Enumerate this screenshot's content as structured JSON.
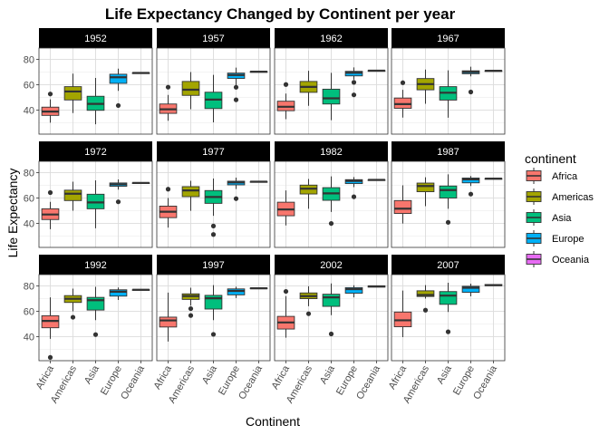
{
  "chart_data": {
    "type": "box",
    "title": "Life Expectancy Changed by Continent per year",
    "xlabel": "Continent",
    "ylabel": "Life Expectancy",
    "categories": [
      "Africa",
      "Americas",
      "Asia",
      "Europe",
      "Oceania"
    ],
    "yticks": [
      40,
      60,
      80
    ],
    "ylim": [
      21,
      89
    ],
    "grid": true,
    "facet_layout": "3 rows x 4 columns",
    "legend": {
      "title": "continent",
      "position": "right",
      "entries": [
        {
          "name": "Africa",
          "color": "#F8766D"
        },
        {
          "name": "Americas",
          "color": "#A3A500"
        },
        {
          "name": "Asia",
          "color": "#00BF7D"
        },
        {
          "name": "Europe",
          "color": "#00B0F6"
        },
        {
          "name": "Oceania",
          "color": "#E76BF3"
        }
      ]
    },
    "panels": [
      {
        "year": "1952",
        "boxes": [
          {
            "q1": 35.8,
            "med": 38.8,
            "q3": 42.3,
            "lo": 30.0,
            "hi": 48.5,
            "out": [
              52.7
            ]
          },
          {
            "q1": 48.0,
            "med": 54.7,
            "q3": 58.5,
            "lo": 37.6,
            "hi": 68.8,
            "out": []
          },
          {
            "q1": 39.8,
            "med": 44.9,
            "q3": 50.9,
            "lo": 28.8,
            "hi": 65.4,
            "out": []
          },
          {
            "q1": 61.1,
            "med": 65.9,
            "q3": 68.3,
            "lo": 55.2,
            "hi": 72.7,
            "out": [
              43.6
            ]
          },
          {
            "q1": 69.3,
            "med": 69.3,
            "q3": 69.4,
            "lo": 69.1,
            "hi": 69.4,
            "out": []
          }
        ]
      },
      {
        "year": "1957",
        "boxes": [
          {
            "q1": 37.4,
            "med": 40.6,
            "q3": 44.8,
            "lo": 31.6,
            "hi": 52.0,
            "out": [
              58.1
            ]
          },
          {
            "q1": 51.6,
            "med": 56.1,
            "q3": 62.6,
            "lo": 40.7,
            "hi": 70.0,
            "out": []
          },
          {
            "q1": 41.2,
            "med": 48.3,
            "q3": 54.1,
            "lo": 30.3,
            "hi": 67.8,
            "out": []
          },
          {
            "q1": 65.0,
            "med": 67.7,
            "q3": 69.2,
            "lo": 59.3,
            "hi": 73.5,
            "out": [
              58.0,
              48.1
            ]
          },
          {
            "q1": 70.3,
            "med": 70.3,
            "q3": 70.4,
            "lo": 70.2,
            "hi": 70.4,
            "out": []
          }
        ]
      },
      {
        "year": "1962",
        "boxes": [
          {
            "q1": 39.5,
            "med": 42.6,
            "q3": 47.0,
            "lo": 32.8,
            "hi": 53.0,
            "out": [
              60.2
            ]
          },
          {
            "q1": 54.0,
            "med": 58.3,
            "q3": 62.6,
            "lo": 43.4,
            "hi": 71.0,
            "out": []
          },
          {
            "q1": 44.8,
            "med": 49.3,
            "q3": 56.5,
            "lo": 32.0,
            "hi": 69.4,
            "out": []
          },
          {
            "q1": 67.0,
            "med": 69.5,
            "q3": 70.6,
            "lo": 64.0,
            "hi": 73.7,
            "out": [
              61.9,
              52.0
            ]
          },
          {
            "q1": 70.9,
            "med": 71.1,
            "q3": 71.2,
            "lo": 70.9,
            "hi": 71.3,
            "out": []
          }
        ]
      },
      {
        "year": "1967",
        "boxes": [
          {
            "q1": 41.4,
            "med": 44.7,
            "q3": 49.5,
            "lo": 34.1,
            "hi": 56.0,
            "out": [
              61.6
            ]
          },
          {
            "q1": 56.0,
            "med": 60.5,
            "q3": 64.9,
            "lo": 45.0,
            "hi": 72.0,
            "out": []
          },
          {
            "q1": 47.9,
            "med": 53.7,
            "q3": 58.5,
            "lo": 34.0,
            "hi": 71.4,
            "out": []
          },
          {
            "q1": 68.7,
            "med": 70.0,
            "q3": 71.0,
            "lo": 66.6,
            "hi": 74.2,
            "out": [
              54.3
            ]
          },
          {
            "q1": 71.0,
            "med": 71.0,
            "q3": 71.1,
            "lo": 70.9,
            "hi": 71.1,
            "out": []
          }
        ]
      },
      {
        "year": "1972",
        "boxes": [
          {
            "q1": 43.0,
            "med": 47.0,
            "q3": 51.5,
            "lo": 35.4,
            "hi": 57.0,
            "out": [
              64.3
            ]
          },
          {
            "q1": 58.0,
            "med": 63.4,
            "q3": 66.2,
            "lo": 50.0,
            "hi": 72.9,
            "out": []
          },
          {
            "q1": 51.5,
            "med": 56.5,
            "q3": 63.0,
            "lo": 36.1,
            "hi": 74.0,
            "out": []
          },
          {
            "q1": 69.3,
            "med": 70.8,
            "q3": 71.9,
            "lo": 66.6,
            "hi": 74.7,
            "out": [
              57.0
            ]
          },
          {
            "q1": 71.7,
            "med": 71.9,
            "q3": 72.0,
            "lo": 71.6,
            "hi": 72.0,
            "out": []
          }
        ]
      },
      {
        "year": "1977",
        "boxes": [
          {
            "q1": 44.5,
            "med": 49.2,
            "q3": 53.6,
            "lo": 36.7,
            "hi": 60.0,
            "out": [
              67.0
            ]
          },
          {
            "q1": 61.1,
            "med": 66.0,
            "q3": 69.0,
            "lo": 49.9,
            "hi": 73.6,
            "out": []
          },
          {
            "q1": 55.8,
            "med": 60.8,
            "q3": 65.9,
            "lo": 46.0,
            "hi": 75.4,
            "out": [
              37.9,
              31.2
            ]
          },
          {
            "q1": 70.4,
            "med": 72.3,
            "q3": 73.3,
            "lo": 67.1,
            "hi": 76.1,
            "out": [
              59.5
            ]
          },
          {
            "q1": 72.8,
            "med": 72.9,
            "q3": 73.0,
            "lo": 72.6,
            "hi": 73.1,
            "out": []
          }
        ]
      },
      {
        "year": "1982",
        "boxes": [
          {
            "q1": 46.0,
            "med": 51.0,
            "q3": 56.7,
            "lo": 38.4,
            "hi": 66.0,
            "out": []
          },
          {
            "q1": 63.2,
            "med": 67.4,
            "q3": 70.2,
            "lo": 51.5,
            "hi": 75.0,
            "out": []
          },
          {
            "q1": 58.2,
            "med": 63.7,
            "q3": 68.2,
            "lo": 49.0,
            "hi": 77.1,
            "out": [
              39.9
            ]
          },
          {
            "q1": 71.4,
            "med": 73.5,
            "q3": 74.5,
            "lo": 68.6,
            "hi": 76.6,
            "out": [
              61.0
            ]
          },
          {
            "q1": 74.3,
            "med": 74.3,
            "q3": 74.4,
            "lo": 74.2,
            "hi": 74.4,
            "out": []
          }
        ]
      },
      {
        "year": "1987",
        "boxes": [
          {
            "q1": 47.8,
            "med": 51.6,
            "q3": 58.0,
            "lo": 39.9,
            "hi": 70.0,
            "out": []
          },
          {
            "q1": 65.0,
            "med": 69.5,
            "q3": 71.8,
            "lo": 53.6,
            "hi": 76.4,
            "out": []
          },
          {
            "q1": 60.0,
            "med": 66.3,
            "q3": 69.5,
            "lo": 51.5,
            "hi": 78.7,
            "out": [
              40.8
            ]
          },
          {
            "q1": 72.0,
            "med": 74.8,
            "q3": 75.8,
            "lo": 69.5,
            "hi": 77.4,
            "out": [
              63.1
            ]
          },
          {
            "q1": 75.2,
            "med": 75.3,
            "q3": 75.4,
            "lo": 75.1,
            "hi": 75.5,
            "out": []
          }
        ]
      },
      {
        "year": "1992",
        "boxes": [
          {
            "q1": 47.0,
            "med": 52.4,
            "q3": 56.5,
            "lo": 38.3,
            "hi": 71.0,
            "out": [
              23.6
            ]
          },
          {
            "q1": 67.0,
            "med": 69.9,
            "q3": 72.4,
            "lo": 60.0,
            "hi": 77.9,
            "out": [
              55.3
            ]
          },
          {
            "q1": 61.0,
            "med": 68.8,
            "q3": 71.0,
            "lo": 53.0,
            "hi": 79.3,
            "out": [
              41.6
            ]
          },
          {
            "q1": 72.0,
            "med": 75.5,
            "q3": 77.0,
            "lo": 69.0,
            "hi": 78.8,
            "out": []
          },
          {
            "q1": 76.9,
            "med": 77.0,
            "q3": 77.1,
            "lo": 76.8,
            "hi": 77.2,
            "out": []
          }
        ]
      },
      {
        "year": "1997",
        "boxes": [
          {
            "q1": 47.6,
            "med": 52.8,
            "q3": 55.4,
            "lo": 36.1,
            "hi": 74.8,
            "out": []
          },
          {
            "q1": 69.4,
            "med": 72.1,
            "q3": 73.8,
            "lo": 64.5,
            "hi": 78.6,
            "out": [
              62.1,
              56.7
            ]
          },
          {
            "q1": 61.8,
            "med": 70.3,
            "q3": 72.6,
            "lo": 53.0,
            "hi": 80.7,
            "out": [
              41.8
            ]
          },
          {
            "q1": 73.0,
            "med": 76.1,
            "q3": 77.7,
            "lo": 70.5,
            "hi": 79.4,
            "out": []
          },
          {
            "q1": 78.0,
            "med": 78.2,
            "q3": 78.4,
            "lo": 77.9,
            "hi": 78.6,
            "out": []
          }
        ]
      },
      {
        "year": "2002",
        "boxes": [
          {
            "q1": 46.0,
            "med": 51.2,
            "q3": 56.0,
            "lo": 39.2,
            "hi": 72.0,
            "out": [
              75.7
            ]
          },
          {
            "q1": 70.0,
            "med": 72.0,
            "q3": 74.5,
            "lo": 64.0,
            "hi": 79.8,
            "out": [
              58.1
            ]
          },
          {
            "q1": 63.9,
            "med": 71.0,
            "q3": 73.5,
            "lo": 57.0,
            "hi": 82.0,
            "out": [
              42.1
            ]
          },
          {
            "q1": 74.3,
            "med": 77.5,
            "q3": 78.7,
            "lo": 71.0,
            "hi": 80.6,
            "out": []
          },
          {
            "q1": 79.1,
            "med": 79.7,
            "q3": 80.1,
            "lo": 79.1,
            "hi": 80.4,
            "out": []
          }
        ]
      },
      {
        "year": "2007",
        "boxes": [
          {
            "q1": 47.8,
            "med": 52.9,
            "q3": 59.4,
            "lo": 39.6,
            "hi": 76.4,
            "out": []
          },
          {
            "q1": 71.7,
            "med": 72.9,
            "q3": 76.2,
            "lo": 70.0,
            "hi": 80.7,
            "out": [
              60.9
            ]
          },
          {
            "q1": 65.5,
            "med": 72.4,
            "q3": 75.6,
            "lo": 59.5,
            "hi": 82.6,
            "out": [
              43.8
            ]
          },
          {
            "q1": 75.0,
            "med": 78.6,
            "q3": 79.8,
            "lo": 71.8,
            "hi": 81.8,
            "out": []
          },
          {
            "q1": 80.2,
            "med": 80.7,
            "q3": 81.2,
            "lo": 80.1,
            "hi": 81.2,
            "out": []
          }
        ]
      }
    ]
  }
}
